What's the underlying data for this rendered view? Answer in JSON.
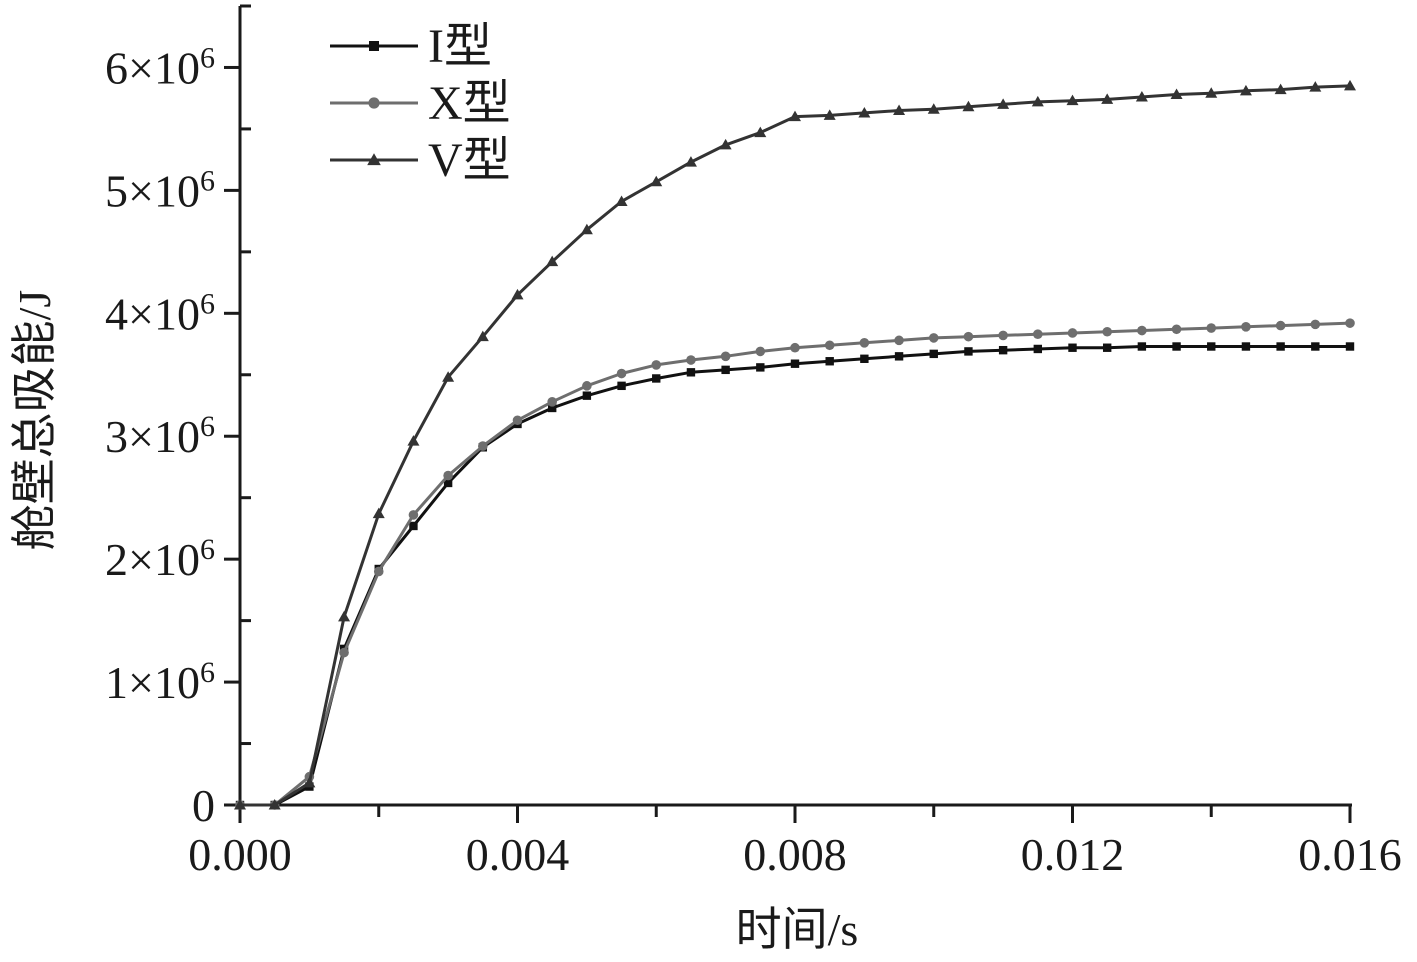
{
  "chart_data": {
    "type": "line",
    "title": "",
    "xlabel": "时间/s",
    "ylabel": "舱壁总吸能/J",
    "xlim": [
      0,
      0.016
    ],
    "ylim": [
      0,
      6500000
    ],
    "x_ticks": [
      0,
      0.004,
      0.008,
      0.012,
      0.016
    ],
    "x_tick_labels": [
      "0.000",
      "0.004",
      "0.008",
      "0.012",
      "0.016"
    ],
    "y_ticks": [
      0,
      1000000,
      2000000,
      3000000,
      4000000,
      5000000,
      6000000
    ],
    "y_tick_labels": [
      {
        "mantissa": "0",
        "exp": ""
      },
      {
        "mantissa": "1×10",
        "exp": "6"
      },
      {
        "mantissa": "2×10",
        "exp": "6"
      },
      {
        "mantissa": "3×10",
        "exp": "6"
      },
      {
        "mantissa": "4×10",
        "exp": "6"
      },
      {
        "mantissa": "5×10",
        "exp": "6"
      },
      {
        "mantissa": "6×10",
        "exp": "6"
      }
    ],
    "grid": false,
    "legend_position": "top-left",
    "series": [
      {
        "name": "I型",
        "color": "#111111",
        "marker": "square",
        "x": [
          0,
          0.0005,
          0.001,
          0.0015,
          0.002,
          0.0025,
          0.003,
          0.0035,
          0.004,
          0.0045,
          0.005,
          0.0055,
          0.006,
          0.0065,
          0.007,
          0.0075,
          0.008,
          0.0085,
          0.009,
          0.0095,
          0.01,
          0.0105,
          0.011,
          0.0115,
          0.012,
          0.0125,
          0.013,
          0.0135,
          0.014,
          0.0145,
          0.015,
          0.0155,
          0.016
        ],
        "y": [
          0,
          0,
          150000,
          1270000,
          1920000,
          2270000,
          2620000,
          2910000,
          3100000,
          3230000,
          3330000,
          3410000,
          3470000,
          3520000,
          3540000,
          3560000,
          3590000,
          3610000,
          3630000,
          3650000,
          3670000,
          3690000,
          3700000,
          3710000,
          3720000,
          3720000,
          3730000,
          3730000,
          3730000,
          3730000,
          3730000,
          3730000,
          3730000
        ]
      },
      {
        "name": "X型",
        "color": "#6e6e6e",
        "marker": "circle",
        "x": [
          0,
          0.0005,
          0.001,
          0.0015,
          0.002,
          0.0025,
          0.003,
          0.0035,
          0.004,
          0.0045,
          0.005,
          0.0055,
          0.006,
          0.0065,
          0.007,
          0.0075,
          0.008,
          0.0085,
          0.009,
          0.0095,
          0.01,
          0.0105,
          0.011,
          0.0115,
          0.012,
          0.0125,
          0.013,
          0.0135,
          0.014,
          0.0145,
          0.015,
          0.0155,
          0.016
        ],
        "y": [
          0,
          0,
          230000,
          1240000,
          1900000,
          2360000,
          2680000,
          2920000,
          3130000,
          3280000,
          3410000,
          3510000,
          3580000,
          3620000,
          3650000,
          3690000,
          3720000,
          3740000,
          3760000,
          3780000,
          3800000,
          3810000,
          3820000,
          3830000,
          3840000,
          3850000,
          3860000,
          3870000,
          3880000,
          3890000,
          3900000,
          3910000,
          3920000
        ]
      },
      {
        "name": "V型",
        "color": "#333333",
        "marker": "triangle",
        "x": [
          0,
          0.0005,
          0.001,
          0.0015,
          0.002,
          0.0025,
          0.003,
          0.0035,
          0.004,
          0.0045,
          0.005,
          0.0055,
          0.006,
          0.0065,
          0.007,
          0.0075,
          0.008,
          0.0085,
          0.009,
          0.0095,
          0.01,
          0.0105,
          0.011,
          0.0115,
          0.012,
          0.0125,
          0.013,
          0.0135,
          0.014,
          0.0145,
          0.015,
          0.0155,
          0.016
        ],
        "y": [
          0,
          0,
          180000,
          1530000,
          2370000,
          2960000,
          3480000,
          3810000,
          4150000,
          4420000,
          4680000,
          4910000,
          5070000,
          5230000,
          5370000,
          5470000,
          5600000,
          5610000,
          5630000,
          5650000,
          5660000,
          5680000,
          5700000,
          5720000,
          5730000,
          5740000,
          5760000,
          5780000,
          5790000,
          5810000,
          5820000,
          5840000,
          5850000
        ]
      }
    ]
  }
}
